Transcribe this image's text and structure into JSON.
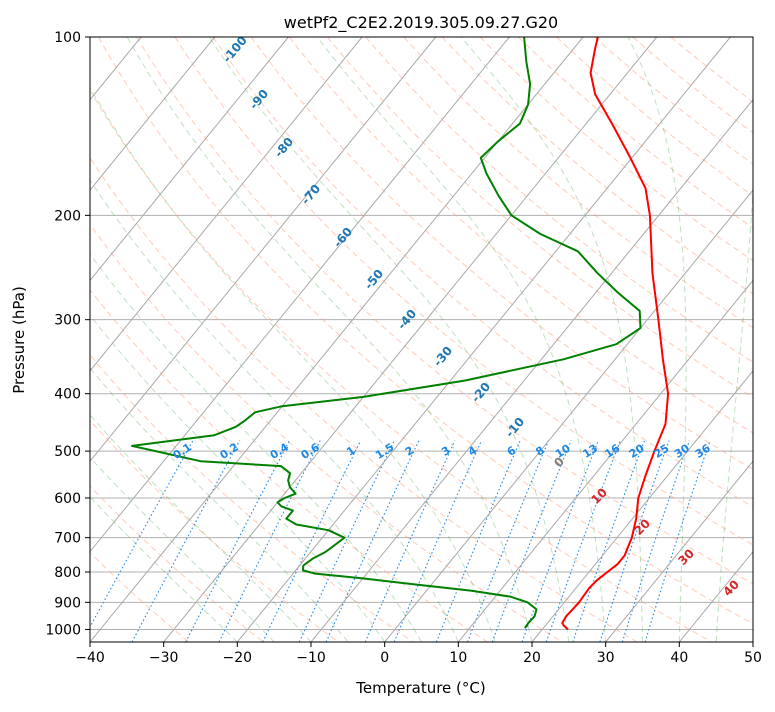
{
  "chart_data": {
    "type": "line",
    "title": "wetPf2_C2E2.2019.305.09.27.G20",
    "xlabel": "Temperature (°C)",
    "ylabel": "Pressure (hPa)",
    "xlim": [
      -40,
      50
    ],
    "ylim": [
      1050,
      100
    ],
    "y_scale": "log",
    "grid": true,
    "x_ticks": [
      -40,
      -30,
      -20,
      -10,
      0,
      10,
      20,
      30,
      40,
      50
    ],
    "y_ticks": [
      100,
      200,
      300,
      400,
      500,
      600,
      700,
      800,
      900,
      1000
    ],
    "series": [
      {
        "color": "#ff0000",
        "points": [
          [
            1000,
            23.5
          ],
          [
            985,
            22.5
          ],
          [
            975,
            22.0
          ],
          [
            950,
            21.8
          ],
          [
            925,
            21.9
          ],
          [
            900,
            22.0
          ],
          [
            875,
            21.9
          ],
          [
            850,
            21.8
          ],
          [
            825,
            22.0
          ],
          [
            800,
            22.5
          ],
          [
            775,
            23.0
          ],
          [
            750,
            23.0
          ],
          [
            725,
            22.5
          ],
          [
            700,
            22.0
          ],
          [
            650,
            20.5
          ],
          [
            600,
            18.5
          ],
          [
            550,
            17.0
          ],
          [
            500,
            15.5
          ],
          [
            450,
            14.0
          ],
          [
            400,
            11.0
          ],
          [
            350,
            6.5
          ],
          [
            300,
            1.5
          ],
          [
            250,
            -4.5
          ],
          [
            230,
            -7.0
          ],
          [
            200,
            -11.2
          ],
          [
            180,
            -14.8
          ],
          [
            160,
            -20.2
          ],
          [
            140,
            -26.5
          ],
          [
            125,
            -32.0
          ],
          [
            115,
            -35.0
          ],
          [
            105,
            -37.0
          ],
          [
            100,
            -38.0
          ]
        ]
      },
      {
        "color": "#008000",
        "points": [
          [
            995,
            17.5
          ],
          [
            975,
            17.4
          ],
          [
            950,
            17.5
          ],
          [
            925,
            17.0
          ],
          [
            900,
            15.0
          ],
          [
            880,
            12.0
          ],
          [
            860,
            6.0
          ],
          [
            840,
            -2.0
          ],
          [
            820,
            -10.0
          ],
          [
            805,
            -17.0
          ],
          [
            795,
            -19.0
          ],
          [
            780,
            -19.5
          ],
          [
            760,
            -19.0
          ],
          [
            740,
            -18.0
          ],
          [
            720,
            -17.5
          ],
          [
            700,
            -17.0
          ],
          [
            680,
            -20.0
          ],
          [
            665,
            -25.0
          ],
          [
            650,
            -27.0
          ],
          [
            630,
            -27.0
          ],
          [
            620,
            -29.0
          ],
          [
            610,
            -30.0
          ],
          [
            600,
            -29.5
          ],
          [
            590,
            -28.5
          ],
          [
            575,
            -30.0
          ],
          [
            560,
            -31.0
          ],
          [
            545,
            -31.5
          ],
          [
            530,
            -33.5
          ],
          [
            520,
            -45.0
          ],
          [
            490,
            -56.0
          ],
          [
            470,
            -46.0
          ],
          [
            455,
            -44.0
          ],
          [
            445,
            -43.5
          ],
          [
            430,
            -43.0
          ],
          [
            420,
            -40.0
          ],
          [
            405,
            -30.0
          ],
          [
            380,
            -18.0
          ],
          [
            350,
            -7.0
          ],
          [
            330,
            -1.5
          ],
          [
            310,
            0.0
          ],
          [
            290,
            -2.0
          ],
          [
            270,
            -7.0
          ],
          [
            250,
            -12.0
          ],
          [
            230,
            -17.0
          ],
          [
            215,
            -24.0
          ],
          [
            200,
            -30.0
          ],
          [
            185,
            -34.0
          ],
          [
            170,
            -38.0
          ],
          [
            160,
            -40.5
          ],
          [
            150,
            -40.0
          ],
          [
            140,
            -39.0
          ],
          [
            130,
            -40.0
          ],
          [
            120,
            -42.0
          ],
          [
            110,
            -45.0
          ],
          [
            100,
            -48.0
          ]
        ]
      }
    ],
    "isotherm_labels": [
      "-100",
      "-90",
      "-80",
      "-70",
      "-60",
      "-50",
      "-40",
      "-30",
      "-20",
      "-10"
    ],
    "mixing_ratio_labels": [
      "0.1",
      "0.2",
      "0.4",
      "0.6",
      "1",
      "1.5",
      "2",
      "3",
      "4",
      "6",
      "8",
      "10",
      "13",
      "16",
      "20",
      "25",
      "30",
      "36"
    ],
    "moist_adiabat_labels": [
      "0",
      "10",
      "20",
      "30",
      "40"
    ],
    "colors": {
      "temperature": "#ff0000",
      "dewpoint": "#008000",
      "isotherm_label": "#1f77b4",
      "mixing_ratio_label": "#1e88e5",
      "moist_label_zero": "#808080",
      "moist_label": "#d62728"
    }
  }
}
